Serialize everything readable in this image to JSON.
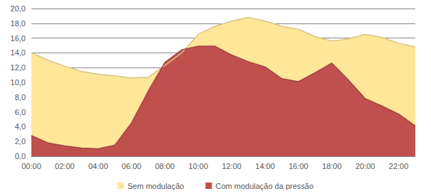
{
  "chart_data": {
    "type": "area",
    "categories": [
      "00:00",
      null,
      "02:00",
      null,
      "04:00",
      null,
      "06:00",
      null,
      "08:00",
      null,
      "10:00",
      null,
      "12:00",
      null,
      "14:00",
      null,
      "16:00",
      null,
      "18:00",
      null,
      "20:00",
      null,
      "22:00",
      null
    ],
    "series": [
      {
        "name": "Sem modulação",
        "color": "#FFE699",
        "values": [
          14.0,
          13.0,
          12.2,
          11.5,
          11.1,
          10.9,
          10.6,
          10.7,
          12.3,
          14.0,
          16.5,
          17.6,
          18.3,
          18.8,
          18.3,
          17.6,
          17.2,
          16.2,
          15.6,
          15.9,
          16.5,
          16.1,
          15.3,
          14.8
        ]
      },
      {
        "name": "Com modulação da pressão",
        "color": "#C0504D",
        "values": [
          2.8,
          1.8,
          1.4,
          1.1,
          1.0,
          1.5,
          4.5,
          8.8,
          12.7,
          14.4,
          14.9,
          14.9,
          13.7,
          12.8,
          12.1,
          10.5,
          10.1,
          11.3,
          12.6,
          10.3,
          7.8,
          6.8,
          5.7,
          4.1
        ]
      }
    ],
    "ylim": [
      0,
      20
    ],
    "yticks": [
      {
        "value": 0,
        "label": "0,0"
      },
      {
        "value": 2,
        "label": "2,0"
      },
      {
        "value": 4,
        "label": "4,0"
      },
      {
        "value": 6,
        "label": "6,0"
      },
      {
        "value": 8,
        "label": "8,0"
      },
      {
        "value": 10,
        "label": "10,0"
      },
      {
        "value": 12,
        "label": "12,0"
      },
      {
        "value": 14,
        "label": "14,0"
      },
      {
        "value": 16,
        "label": "16,0"
      },
      {
        "value": 18,
        "label": "18,0"
      },
      {
        "value": 20,
        "label": "20,0"
      }
    ],
    "grid": true,
    "legend": "bottom"
  }
}
